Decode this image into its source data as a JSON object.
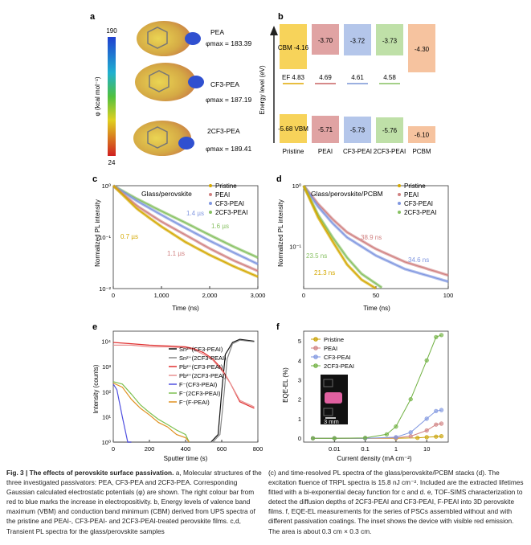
{
  "panel_a": {
    "label": "a",
    "colorbar": {
      "max": "190",
      "min": "24",
      "axis_label": "φ (kcal mol⁻¹)"
    },
    "molecules": [
      {
        "name": "PEA",
        "phi_max": "φmax = 183.39"
      },
      {
        "name": "CF3-PEA",
        "phi_max": "φmax = 187.19"
      },
      {
        "name": "2CF3-PEA",
        "phi_max": "φmax = 189.41"
      }
    ]
  },
  "panel_b": {
    "label": "b",
    "ylabel": "Energy level (eV)",
    "columns": [
      {
        "name": "Pristine",
        "cbm": "CBM -4.16",
        "ef": "EF 4.83",
        "vbm": "-5.68 VBM",
        "color": "#f7d35a",
        "line": "#e0a800"
      },
      {
        "name": "PEAI",
        "cbm": "-3.70",
        "ef": "4.69",
        "vbm": "-5.71",
        "color": "#e0a3a3",
        "line": "#c86464"
      },
      {
        "name": "CF3-PEAI",
        "cbm": "-3.72",
        "ef": "4.61",
        "vbm": "-5.73",
        "color": "#b4c6ea",
        "line": "#7a96d6"
      },
      {
        "name": "2CF3-PEAI",
        "cbm": "-3.73",
        "ef": "4.58",
        "vbm": "-5.76",
        "color": "#bfe0a8",
        "line": "#86c060"
      },
      {
        "name": "PCBM",
        "cbm": "-4.30",
        "ef": "",
        "vbm": "-6.10",
        "color": "#f6c39f",
        "line": "#e89a66"
      }
    ]
  },
  "panel_c": {
    "label": "c",
    "title": "Glass/perovskite",
    "xlabel": "Time (ns)",
    "ylabel": "Normalized PL intensity",
    "xticks": [
      "0",
      "1,000",
      "2,000",
      "3,000"
    ],
    "yticks": [
      "10⁰",
      "10⁻¹",
      "10⁻²"
    ],
    "legend": [
      "Pristine",
      "PEAI",
      "CF3-PEAI",
      "2CF3-PEAI"
    ],
    "annotations": [
      "0.7 µs",
      "1.1 µs",
      "1.4 µs",
      "1.6 µs"
    ]
  },
  "panel_d": {
    "label": "d",
    "title": "Glass/perovskite/PCBM",
    "xlabel": "Time (ns)",
    "ylabel": "Normalized PL intensity",
    "xticks": [
      "0",
      "50",
      "100"
    ],
    "yticks": [
      "10⁰",
      "10⁻¹"
    ],
    "legend": [
      "Pristine",
      "PEAI",
      "CF3-PEAI",
      "2CF3-PEAI"
    ],
    "annotations": [
      "21.3 ns",
      "23.5 ns",
      "38.9 ns",
      "34.6 ns"
    ]
  },
  "panel_e": {
    "label": "e",
    "xlabel": "Sputter time (s)",
    "ylabel": "Intensity (counts)",
    "xticks": [
      "0",
      "200",
      "400",
      "600",
      "800"
    ],
    "yticks": [
      "10⁰",
      "10¹",
      "10²",
      "10³",
      "10⁴"
    ],
    "legend": [
      "Sn²⁺(CF3-PEAI)",
      "Sn²⁺(2CF3-PEAI)",
      "Pb²⁺(CF3-PEAI)",
      "Pb²⁺(2CF3-PEAI)",
      "F⁻(CF3-PEAI)",
      "F⁻(2CF3-PEAI)",
      "F⁻(F-PEAI)"
    ]
  },
  "panel_f": {
    "label": "f",
    "xlabel": "Current density (mA cm⁻²)",
    "ylabel": "EQE-EL (%)",
    "xticks": [
      "0.01",
      "0.1",
      "1",
      "10"
    ],
    "yticks": [
      "0",
      "1",
      "2",
      "3",
      "4",
      "5"
    ],
    "legend": [
      "Pristine",
      "PEAI",
      "CF3-PEAI",
      "2CF3-PEAI"
    ],
    "inset_scale": "3 mm"
  },
  "chart_data": [
    {
      "type": "line",
      "title": "Glass/perovskite",
      "xlabel": "Time (ns)",
      "ylabel": "Normalized PL intensity",
      "xlim": [
        0,
        3000
      ],
      "ylim": [
        0.01,
        1
      ],
      "yscale": "log",
      "series": [
        {
          "name": "Pristine",
          "lifetime": "0.7 µs",
          "x": [
            0,
            500,
            1000,
            1500,
            2000,
            2500,
            3000
          ],
          "values": [
            1,
            0.35,
            0.16,
            0.08,
            0.045,
            0.027,
            0.017
          ]
        },
        {
          "name": "PEAI",
          "lifetime": "1.1 µs",
          "x": [
            0,
            500,
            1000,
            1500,
            2000,
            2500,
            3000
          ],
          "values": [
            1,
            0.4,
            0.2,
            0.11,
            0.06,
            0.035,
            0.022
          ]
        },
        {
          "name": "CF3-PEAI",
          "lifetime": "1.4 µs",
          "x": [
            0,
            500,
            1000,
            1500,
            2000,
            2500,
            3000
          ],
          "values": [
            1,
            0.5,
            0.27,
            0.15,
            0.085,
            0.05,
            0.03
          ]
        },
        {
          "name": "2CF3-PEAI",
          "lifetime": "1.6 µs",
          "x": [
            0,
            500,
            1000,
            1500,
            2000,
            2500,
            3000
          ],
          "values": [
            1,
            0.55,
            0.32,
            0.19,
            0.11,
            0.065,
            0.04
          ]
        }
      ]
    },
    {
      "type": "line",
      "title": "Glass/perovskite/PCBM",
      "xlabel": "Time (ns)",
      "ylabel": "Normalized PL intensity",
      "xlim": [
        0,
        100
      ],
      "ylim": [
        0.02,
        1
      ],
      "yscale": "log",
      "series": [
        {
          "name": "Pristine",
          "lifetime": "21.3 ns",
          "x": [
            0,
            10,
            20,
            30,
            40,
            50
          ],
          "values": [
            1,
            0.3,
            0.12,
            0.05,
            0.028,
            0.02
          ]
        },
        {
          "name": "PEAI",
          "lifetime": "38.9 ns",
          "x": [
            0,
            10,
            20,
            30,
            50,
            70,
            100
          ],
          "values": [
            1,
            0.5,
            0.28,
            0.17,
            0.09,
            0.055,
            0.033
          ]
        },
        {
          "name": "CF3-PEAI",
          "lifetime": "34.6 ns",
          "x": [
            0,
            10,
            20,
            30,
            50,
            70,
            100
          ],
          "values": [
            1,
            0.45,
            0.24,
            0.14,
            0.07,
            0.042,
            0.026
          ]
        },
        {
          "name": "2CF3-PEAI",
          "lifetime": "23.5 ns",
          "x": [
            0,
            10,
            20,
            30,
            40,
            55
          ],
          "values": [
            1,
            0.33,
            0.14,
            0.065,
            0.035,
            0.02
          ]
        }
      ]
    },
    {
      "type": "line",
      "xlabel": "Sputter time (s)",
      "ylabel": "Intensity (counts)",
      "xlim": [
        0,
        800
      ],
      "ylim": [
        1,
        30000
      ],
      "yscale": "log",
      "series": [
        {
          "name": "Sn²⁺(CF3-PEAI)",
          "x": [
            0,
            540,
            580,
            600,
            620,
            660,
            700,
            780
          ],
          "values": [
            1,
            1,
            2,
            100,
            3000,
            9000,
            12000,
            10000
          ]
        },
        {
          "name": "Sn²⁺(2CF3-PEAI)",
          "x": [
            0,
            550,
            590,
            610,
            630,
            660,
            700,
            780
          ],
          "values": [
            1,
            1,
            2,
            50,
            2000,
            8000,
            11000,
            9500
          ]
        },
        {
          "name": "Pb²⁺(CF3-PEAI)",
          "x": [
            0,
            100,
            200,
            300,
            400,
            450,
            500,
            550,
            600,
            650,
            700,
            780
          ],
          "values": [
            9000,
            8000,
            7000,
            6500,
            6000,
            5000,
            3500,
            2000,
            800,
            200,
            40,
            22
          ]
        },
        {
          "name": "Pb²⁺(2CF3-PEAI)",
          "x": [
            0,
            100,
            200,
            300,
            400,
            450,
            500,
            550,
            600,
            650,
            700,
            780
          ],
          "values": [
            7000,
            7000,
            6000,
            6000,
            5500,
            4500,
            3000,
            1800,
            700,
            200,
            45,
            25
          ]
        },
        {
          "name": "F⁻(CF3-PEAI)",
          "x": [
            0,
            20,
            50,
            80,
            100
          ],
          "values": [
            200,
            120,
            10,
            1,
            1
          ]
        },
        {
          "name": "F⁻(2CF3-PEAI)",
          "x": [
            0,
            50,
            100,
            150,
            200,
            250,
            300,
            350,
            400,
            420
          ],
          "values": [
            250,
            200,
            80,
            30,
            15,
            8,
            5,
            3,
            2,
            1
          ]
        },
        {
          "name": "F⁻(F-PEAI)",
          "x": [
            0,
            50,
            100,
            150,
            200,
            250,
            300,
            350,
            400,
            420
          ],
          "values": [
            220,
            150,
            50,
            22,
            12,
            6,
            4,
            2,
            1.5,
            1
          ]
        }
      ]
    },
    {
      "type": "line",
      "xlabel": "Current density (mA cm⁻²)",
      "ylabel": "EQE-EL (%)",
      "xscale": "log",
      "xlim": [
        0.001,
        50
      ],
      "ylim": [
        -0.2,
        5.5
      ],
      "series": [
        {
          "name": "Pristine",
          "x": [
            0.002,
            0.01,
            0.1,
            1,
            5,
            10,
            20,
            30
          ],
          "values": [
            0,
            0,
            0,
            0,
            0.02,
            0.05,
            0.08,
            0.1
          ]
        },
        {
          "name": "PEAI",
          "x": [
            0.002,
            0.01,
            0.1,
            1,
            3,
            10,
            20,
            30
          ],
          "values": [
            0,
            0,
            0,
            0.02,
            0.1,
            0.4,
            0.7,
            0.75
          ]
        },
        {
          "name": "CF3-PEAI",
          "x": [
            0.002,
            0.01,
            0.1,
            1,
            3,
            10,
            20,
            30
          ],
          "values": [
            0,
            0,
            0,
            0.05,
            0.3,
            1.0,
            1.4,
            1.45
          ]
        },
        {
          "name": "2CF3-PEAI",
          "x": [
            0.002,
            0.01,
            0.1,
            0.5,
            1,
            3,
            10,
            20,
            30
          ],
          "values": [
            0,
            0,
            0.02,
            0.2,
            0.6,
            2.0,
            4.0,
            5.2,
            5.3
          ]
        }
      ]
    }
  ],
  "caption": {
    "lead": "Fig. 3 | The effects of perovskite surface passivation.",
    "text": " a, Molecular structures of the three investigated passivators: PEA, CF3-PEA and 2CF3-PEA. Corresponding Gaussian calculated electrostatic potentials (φ) are shown. The right colour bar from red to blue marks the increase in electropositivity. b, Energy levels of valence band maximum (VBM) and conduction band minimum (CBM) derived from UPS spectra of the pristine and PEAI-, CF3-PEAI- and 2CF3-PEAI-treated perovskite films. c,d, Transient PL spectra for the glass/perovskite samples (c) and time-resolved PL spectra of the glass/perovskite/PCBM stacks (d). The excitation fluence of TRPL spectra is 15.8 nJ cm⁻². Included are the extracted lifetimes fitted with a bi-exponential decay function for c and d. e, TOF-SIMS characterization to detect the diffusion depths of 2CF3-PEAI and CF3-PEAI, F-PEAI into 3D perovskite films. f, EQE-EL measurements for the series of PSCs assembled without and with different passivation coatings. The inset shows the device with visible red emission. The area is about 0.3 cm × 0.3 cm."
  }
}
